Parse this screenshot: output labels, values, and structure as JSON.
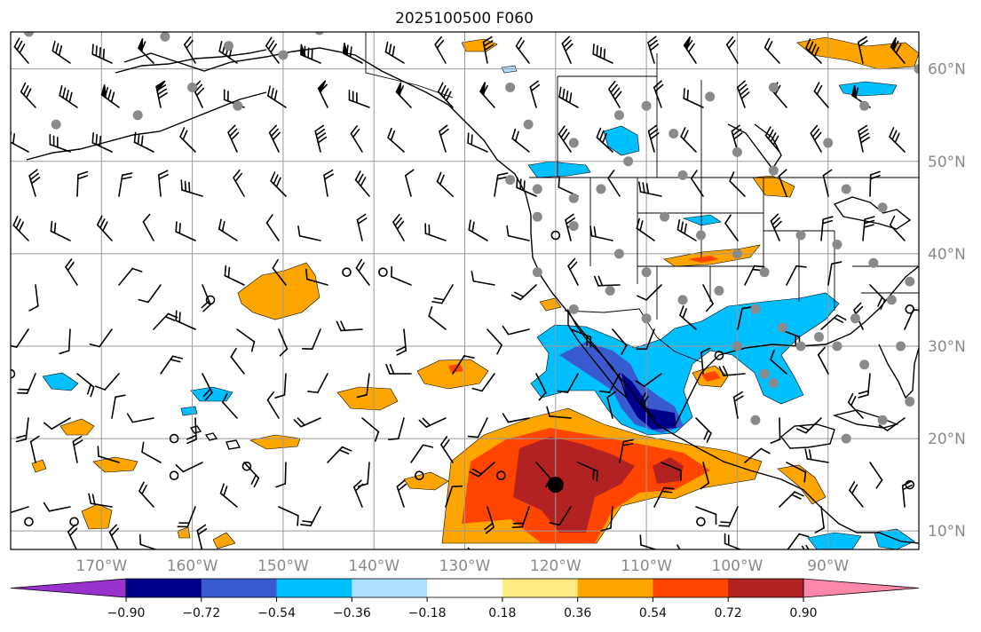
{
  "map": {
    "title": "2025100500 F060",
    "projection": "PlateCarree",
    "lon_range": [
      -180,
      -80
    ],
    "lat_range": [
      8,
      64
    ],
    "lat_labels": [
      "60°N",
      "50°N",
      "40°N",
      "30°N",
      "20°N",
      "10°N"
    ],
    "lon_labels": [
      "170°W",
      "160°W",
      "150°W",
      "140°W",
      "130°W",
      "120°W",
      "110°W",
      "100°W",
      "90°W"
    ],
    "grid": true,
    "colorbar": {
      "orientation": "horizontal",
      "extend": "both",
      "tick_labels": [
        "−0.90",
        "−0.72",
        "−0.54",
        "−0.36",
        "−0.18",
        "0.18",
        "0.36",
        "0.54",
        "0.72",
        "0.90"
      ],
      "colors": [
        "#9932CC",
        "#00008B",
        "#3A5BD0",
        "#00BFFF",
        "#ADDFFF",
        "#FFFFFF",
        "#FFEB80",
        "#FFA500",
        "#FF4500",
        "#B22222",
        "#FF88AA"
      ]
    },
    "marker": {
      "lon": -120,
      "lat": 15,
      "color": "#000000"
    },
    "station_color": "#8a8a8a"
  }
}
